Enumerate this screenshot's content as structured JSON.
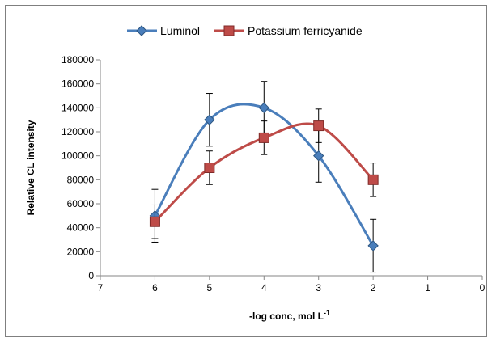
{
  "chart_data": {
    "type": "line",
    "title": "",
    "xlabel": "-log conc, mol L",
    "xlabel_sup": "-1",
    "ylabel": "Relative CL intensity",
    "xlim": [
      7,
      0
    ],
    "ylim": [
      0,
      180000
    ],
    "x_ticks": [
      "7",
      "6",
      "5",
      "4",
      "3",
      "2",
      "1",
      "0"
    ],
    "y_ticks": [
      "0",
      "20000",
      "40000",
      "60000",
      "80000",
      "100000",
      "120000",
      "140000",
      "160000",
      "180000"
    ],
    "grid": "none",
    "legend_position": "top",
    "series": [
      {
        "name": "Luminol",
        "color": "#4a7ebb",
        "marker": "diamond",
        "x": [
          6,
          5,
          4,
          3,
          2
        ],
        "y": [
          50000,
          130000,
          140000,
          100000,
          25000
        ],
        "error": [
          22000,
          22000,
          22000,
          22000,
          22000
        ]
      },
      {
        "name": "Potassium ferricyanide",
        "color": "#be4b48",
        "marker": "square",
        "x": [
          6,
          5,
          4,
          3,
          2
        ],
        "y": [
          45000,
          90000,
          115000,
          125000,
          80000
        ],
        "error": [
          14000,
          14000,
          14000,
          14000,
          14000
        ]
      }
    ]
  }
}
